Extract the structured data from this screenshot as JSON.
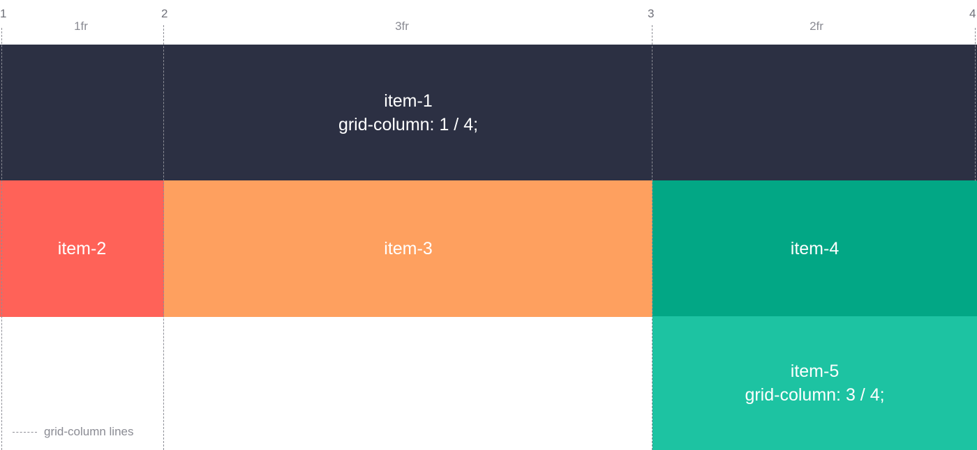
{
  "line_numbers": [
    "1",
    "2",
    "3",
    "4"
  ],
  "tracks": [
    "1fr",
    "3fr",
    "2fr"
  ],
  "items": {
    "item1": {
      "name": "item-1",
      "rule": "grid-column: 1 / 4;",
      "color": "#2c3043"
    },
    "item2": {
      "name": "item-2",
      "color": "#ff6258"
    },
    "item3": {
      "name": "item-3",
      "color": "#fea05f"
    },
    "item4": {
      "name": "item-4",
      "color": "#02a785"
    },
    "item5": {
      "name": "item-5",
      "rule": "grid-column: 3 / 4;",
      "color": "#1dc3a2"
    }
  },
  "legend": {
    "label": "grid-column lines"
  },
  "line_color": "#8d8e96"
}
